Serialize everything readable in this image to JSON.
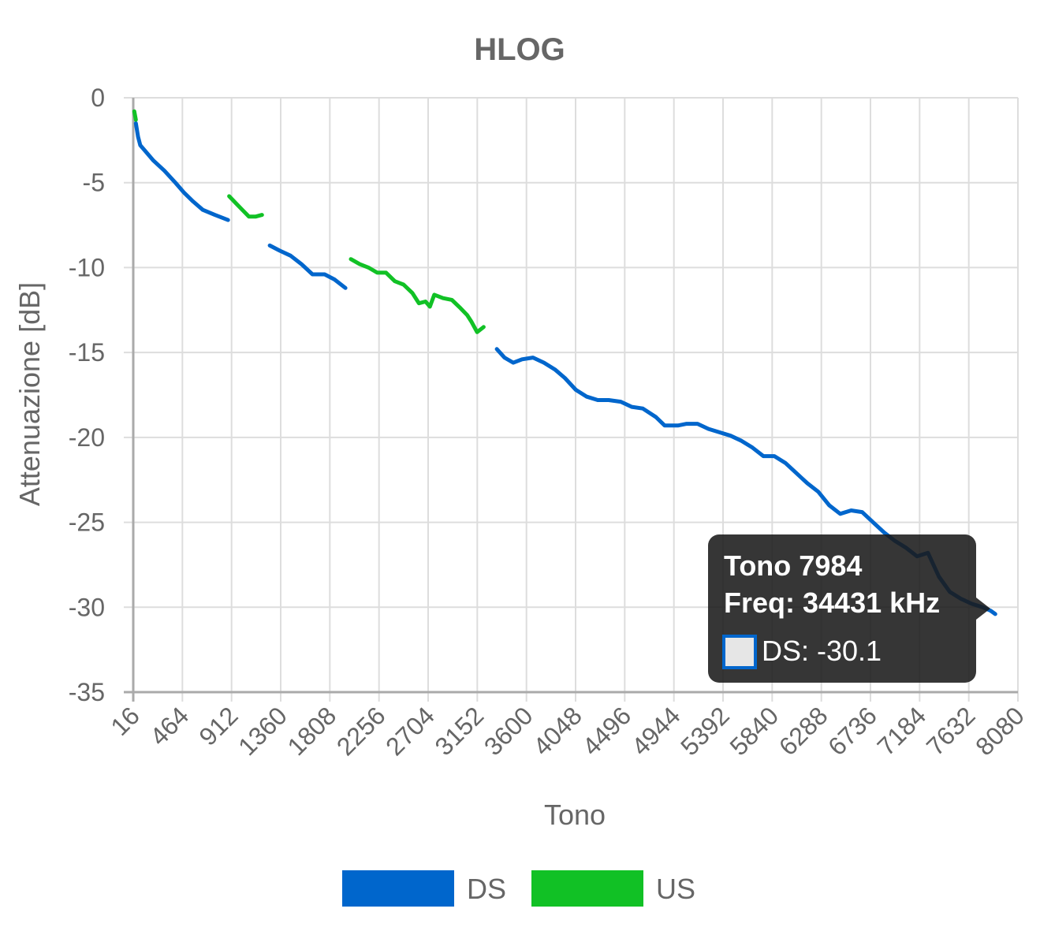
{
  "chart_data": {
    "type": "line",
    "title": "HLOG",
    "xlabel": "Tono",
    "ylabel": "Attenuazione [dB]",
    "xlim": [
      16,
      8080
    ],
    "ylim": [
      -35,
      0
    ],
    "x_ticks": [
      "16",
      "464",
      "912",
      "1360",
      "1808",
      "2256",
      "2704",
      "3152",
      "3600",
      "4048",
      "4496",
      "4944",
      "5392",
      "5840",
      "6288",
      "6736",
      "7184",
      "7632",
      "8080"
    ],
    "y_ticks": [
      "0",
      "-5",
      "-10",
      "-15",
      "-20",
      "-25",
      "-30",
      "-35"
    ],
    "grid": true,
    "legend_position": "bottom",
    "series": [
      {
        "name": "DS",
        "color": "#0066cc",
        "segments": [
          [
            [
              40,
              -1.5
            ],
            [
              60,
              -2.3
            ],
            [
              80,
              -2.8
            ],
            [
              120,
              -3.1
            ],
            [
              200,
              -3.7
            ],
            [
              300,
              -4.3
            ],
            [
              400,
              -5.0
            ],
            [
              480,
              -5.6
            ],
            [
              560,
              -6.1
            ],
            [
              650,
              -6.6
            ],
            [
              760,
              -6.9
            ],
            [
              880,
              -7.2
            ]
          ],
          [
            [
              1260,
              -8.7
            ],
            [
              1350,
              -9.0
            ],
            [
              1450,
              -9.3
            ],
            [
              1550,
              -9.8
            ],
            [
              1650,
              -10.4
            ],
            [
              1760,
              -10.4
            ],
            [
              1850,
              -10.7
            ],
            [
              1950,
              -11.2
            ]
          ],
          [
            [
              3330,
              -14.8
            ],
            [
              3400,
              -15.3
            ],
            [
              3480,
              -15.6
            ],
            [
              3560,
              -15.4
            ],
            [
              3660,
              -15.3
            ],
            [
              3760,
              -15.6
            ],
            [
              3860,
              -16.0
            ],
            [
              3950,
              -16.5
            ],
            [
              4050,
              -17.2
            ],
            [
              4150,
              -17.6
            ],
            [
              4250,
              -17.8
            ],
            [
              4350,
              -17.8
            ],
            [
              4460,
              -17.9
            ],
            [
              4560,
              -18.2
            ],
            [
              4660,
              -18.3
            ],
            [
              4780,
              -18.8
            ],
            [
              4860,
              -19.3
            ],
            [
              4980,
              -19.3
            ],
            [
              5060,
              -19.2
            ],
            [
              5160,
              -19.2
            ],
            [
              5260,
              -19.5
            ],
            [
              5360,
              -19.7
            ],
            [
              5460,
              -19.9
            ],
            [
              5560,
              -20.2
            ],
            [
              5660,
              -20.6
            ],
            [
              5760,
              -21.1
            ],
            [
              5860,
              -21.1
            ],
            [
              5960,
              -21.5
            ],
            [
              6060,
              -22.1
            ],
            [
              6160,
              -22.7
            ],
            [
              6260,
              -23.2
            ],
            [
              6360,
              -24.0
            ],
            [
              6460,
              -24.5
            ],
            [
              6560,
              -24.3
            ],
            [
              6660,
              -24.4
            ],
            [
              6760,
              -25.0
            ],
            [
              6860,
              -25.6
            ],
            [
              6960,
              -26.1
            ],
            [
              7060,
              -26.5
            ],
            [
              7160,
              -27.0
            ],
            [
              7260,
              -26.8
            ],
            [
              7360,
              -28.2
            ],
            [
              7460,
              -29.1
            ],
            [
              7560,
              -29.5
            ],
            [
              7660,
              -29.8
            ],
            [
              7760,
              -30.0
            ],
            [
              7830,
              -30.2
            ],
            [
              7874,
              -30.4
            ]
          ]
        ]
      },
      {
        "name": "US",
        "color": "#11c125",
        "segments": [
          [
            [
              25,
              -0.8
            ],
            [
              40,
              -1.3
            ]
          ],
          [
            [
              890,
              -5.8
            ],
            [
              950,
              -6.2
            ],
            [
              1010,
              -6.6
            ],
            [
              1070,
              -7.0
            ],
            [
              1130,
              -7.0
            ],
            [
              1190,
              -6.9
            ]
          ],
          [
            [
              2000,
              -9.5
            ],
            [
              2080,
              -9.8
            ],
            [
              2160,
              -10.0
            ],
            [
              2240,
              -10.3
            ],
            [
              2320,
              -10.3
            ],
            [
              2400,
              -10.8
            ],
            [
              2480,
              -11.0
            ],
            [
              2560,
              -11.5
            ],
            [
              2620,
              -12.1
            ],
            [
              2680,
              -12.0
            ],
            [
              2720,
              -12.3
            ],
            [
              2760,
              -11.6
            ],
            [
              2840,
              -11.8
            ],
            [
              2920,
              -11.9
            ],
            [
              3000,
              -12.4
            ],
            [
              3060,
              -12.8
            ],
            [
              3100,
              -13.2
            ],
            [
              3150,
              -13.8
            ],
            [
              3210,
              -13.5
            ]
          ]
        ]
      }
    ],
    "tooltip": {
      "title_line1": "Tono 7984",
      "title_line2": "Freq: 34431 kHz",
      "item": "DS: -30.1",
      "point": [
        7984,
        -30.1
      ]
    }
  }
}
